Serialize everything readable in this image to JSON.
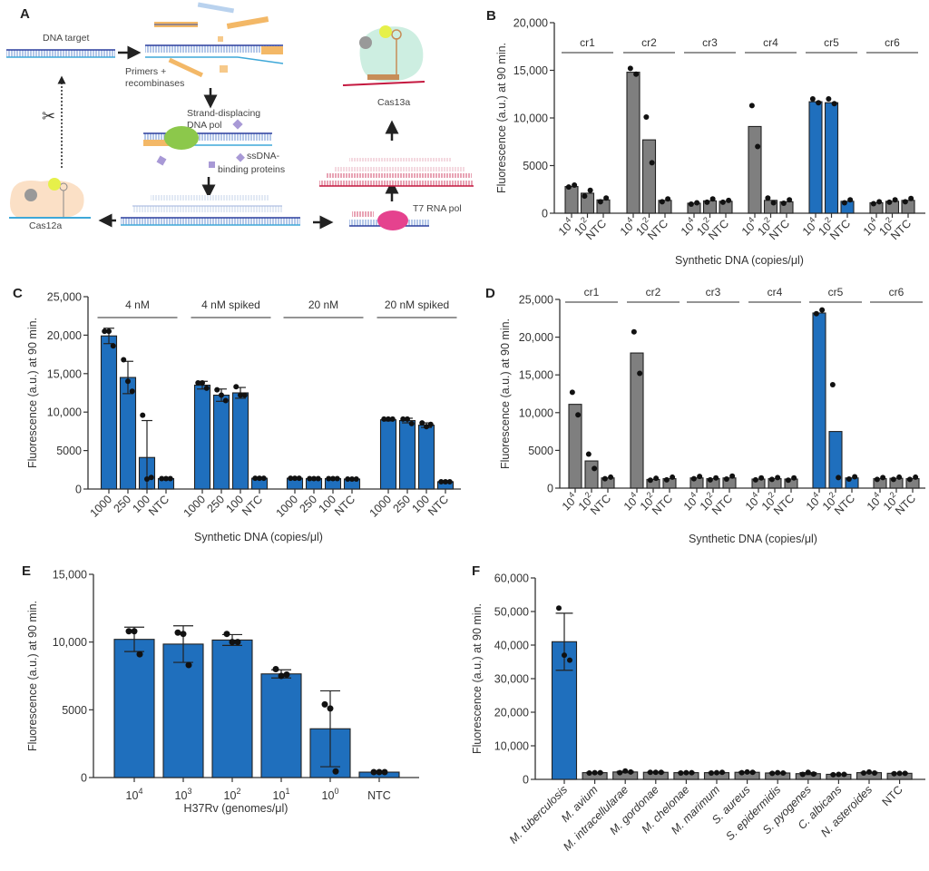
{
  "figure_a": {
    "panel": "A",
    "dna_target": "DNA target",
    "primers_line1": "Primers +",
    "primers_line2": "recombinases",
    "pol_line1": "Strand-displacing",
    "pol_line2": "DNA pol",
    "ssb_line1": "ssDNA-",
    "ssb_line2": "binding proteins",
    "cas12a": "Cas12a",
    "cas13a": "Cas13a",
    "t7": "T7 RNA pol"
  },
  "chart_data": [
    {
      "panel": "B",
      "type": "bar",
      "ylabel": "Fluorescence (a.u.) at 90 min.",
      "xlabel": "Synthetic DNA (copies/μl)",
      "ylim": [
        0,
        20000
      ],
      "yticks": [
        0,
        5000,
        10000,
        15000,
        20000
      ],
      "ytick_labels": [
        "0",
        "5000",
        "10,000",
        "15,000",
        "20,000"
      ],
      "palette": {
        "gray": "#7f7f7f",
        "blue": "#1f6fbd"
      },
      "bar_labels": [
        {
          "t": "10",
          "sup": "4"
        },
        {
          "t": "10",
          "sup": "2"
        },
        {
          "t": "NTC"
        }
      ],
      "groups": [
        {
          "name": "cr1",
          "values": [
            2800,
            2100,
            1400
          ],
          "points": [
            [
              2750,
              2950
            ],
            [
              1800,
              2400
            ],
            [
              1200,
              1600
            ]
          ],
          "colors": [
            "gray",
            "gray",
            "gray"
          ]
        },
        {
          "name": "cr2",
          "values": [
            14800,
            7700,
            1350
          ],
          "points": [
            [
              15200,
              14600
            ],
            [
              10100,
              5300
            ],
            [
              1200,
              1500
            ]
          ],
          "colors": [
            "gray",
            "gray",
            "gray"
          ]
        },
        {
          "name": "cr3",
          "values": [
            1050,
            1300,
            1250
          ],
          "points": [
            [
              950,
              1100
            ],
            [
              1150,
              1500
            ],
            [
              1150,
              1350
            ]
          ],
          "colors": [
            "gray",
            "gray",
            "gray"
          ]
        },
        {
          "name": "cr4",
          "values": [
            9100,
            1350,
            1200
          ],
          "points": [
            [
              11300,
              7000
            ],
            [
              1600,
              1100
            ],
            [
              1050,
              1400
            ]
          ],
          "colors": [
            "gray",
            "gray",
            "gray"
          ]
        },
        {
          "name": "cr5",
          "values": [
            11700,
            11600,
            1250
          ],
          "points": [
            [
              12000,
              11600
            ],
            [
              12000,
              11500
            ],
            [
              1100,
              1400
            ]
          ],
          "colors": [
            "blue",
            "blue",
            "blue"
          ]
        },
        {
          "name": "cr6",
          "values": [
            1100,
            1250,
            1350
          ],
          "points": [
            [
              1000,
              1200
            ],
            [
              1150,
              1400
            ],
            [
              1200,
              1550
            ]
          ],
          "colors": [
            "gray",
            "gray",
            "gray"
          ]
        }
      ]
    },
    {
      "panel": "C",
      "type": "bar",
      "ylabel": "Fluorescence (a.u.) at 90 min.",
      "xlabel": "Synthetic DNA (copies/μl)",
      "ylim": [
        0,
        25000
      ],
      "yticks": [
        0,
        5000,
        10000,
        15000,
        20000,
        25000
      ],
      "ytick_labels": [
        "0",
        "5000",
        "10,000",
        "15,000",
        "20,000",
        "25,000"
      ],
      "palette": {
        "gray": "#7f7f7f",
        "blue": "#1f6fbd"
      },
      "bar_labels": [
        {
          "t": "1000"
        },
        {
          "t": "250"
        },
        {
          "t": "100"
        },
        {
          "t": "NTC"
        }
      ],
      "groups": [
        {
          "name": "4 nM",
          "values": [
            19900,
            14500,
            4100,
            1350
          ],
          "err": [
            1000,
            2100,
            4800,
            0
          ],
          "points": [
            [
              20500,
              20500,
              18600
            ],
            [
              16800,
              14000,
              12700
            ],
            [
              9600,
              1300,
              1500
            ],
            [
              1350,
              1350,
              1350
            ]
          ],
          "colors": [
            "blue",
            "blue",
            "blue",
            "blue"
          ]
        },
        {
          "name": "4 nM spiked",
          "values": [
            13500,
            12200,
            12500,
            1400
          ],
          "err": [
            500,
            800,
            700,
            0
          ],
          "points": [
            [
              13800,
              13800,
              13100
            ],
            [
              12900,
              12200,
              11500
            ],
            [
              13300,
              12200,
              12200
            ],
            [
              1400,
              1400,
              1400
            ]
          ],
          "colors": [
            "blue",
            "blue",
            "blue",
            "blue"
          ]
        },
        {
          "name": "20 nM",
          "values": [
            1400,
            1350,
            1350,
            1300
          ],
          "err": [
            0,
            0,
            0,
            0
          ],
          "points": [
            [
              1400,
              1400,
              1400
            ],
            [
              1350,
              1350,
              1350
            ],
            [
              1350,
              1350,
              1350
            ],
            [
              1300,
              1300,
              1300
            ]
          ],
          "colors": [
            "blue",
            "blue",
            "blue",
            "blue"
          ]
        },
        {
          "name": "20 nM spiked",
          "values": [
            9000,
            8900,
            8300,
            950
          ],
          "err": [
            150,
            300,
            300,
            0
          ],
          "points": [
            [
              9100,
              9100,
              9100
            ],
            [
              9100,
              9100,
              8500
            ],
            [
              8600,
              8100,
              8400
            ],
            [
              950,
              950,
              950
            ]
          ],
          "colors": [
            "blue",
            "blue",
            "blue",
            "blue"
          ]
        }
      ]
    },
    {
      "panel": "D",
      "type": "bar",
      "ylabel": "Fluorescence (a.u.) at 90 min.",
      "xlabel": "Synthetic DNA (copies/μl)",
      "ylim": [
        0,
        25000
      ],
      "yticks": [
        0,
        5000,
        10000,
        15000,
        20000,
        25000
      ],
      "ytick_labels": [
        "0",
        "5000",
        "10,000",
        "15,000",
        "20,000",
        "25,000"
      ],
      "palette": {
        "gray": "#7f7f7f",
        "blue": "#1f6fbd"
      },
      "bar_labels": [
        {
          "t": "10",
          "sup": "4"
        },
        {
          "t": "10",
          "sup": "2"
        },
        {
          "t": "NTC"
        }
      ],
      "groups": [
        {
          "name": "cr1",
          "values": [
            11100,
            3600,
            1350
          ],
          "points": [
            [
              12700,
              9700
            ],
            [
              4500,
              2600
            ],
            [
              1250,
              1450
            ]
          ],
          "colors": [
            "gray",
            "gray",
            "gray"
          ]
        },
        {
          "name": "cr2",
          "values": [
            17900,
            1150,
            1250
          ],
          "points": [
            [
              20700,
              15200
            ],
            [
              1050,
              1300
            ],
            [
              1100,
              1450
            ]
          ],
          "colors": [
            "gray",
            "gray",
            "gray"
          ]
        },
        {
          "name": "cr3",
          "values": [
            1350,
            1250,
            1350
          ],
          "points": [
            [
              1250,
              1550
            ],
            [
              1100,
              1350
            ],
            [
              1200,
              1600
            ]
          ],
          "colors": [
            "gray",
            "gray",
            "gray"
          ]
        },
        {
          "name": "cr4",
          "values": [
            1200,
            1250,
            1200
          ],
          "points": [
            [
              1100,
              1350
            ],
            [
              1150,
              1400
            ],
            [
              1050,
              1350
            ]
          ],
          "colors": [
            "gray",
            "gray",
            "gray"
          ]
        },
        {
          "name": "cr5",
          "values": [
            23200,
            7500,
            1350
          ],
          "points": [
            [
              23100,
              23600
            ],
            [
              13700,
              1400
            ],
            [
              1200,
              1500
            ]
          ],
          "colors": [
            "blue",
            "blue",
            "blue"
          ]
        },
        {
          "name": "cr6",
          "values": [
            1250,
            1300,
            1250
          ],
          "points": [
            [
              1150,
              1400
            ],
            [
              1150,
              1450
            ],
            [
              1150,
              1450
            ]
          ],
          "colors": [
            "gray",
            "gray",
            "gray"
          ]
        }
      ]
    },
    {
      "panel": "E",
      "type": "bar",
      "ylabel": "Fluorescence (a.u.) at 90 min.",
      "xlabel": "H37Rv (genomes/μl)",
      "ylim": [
        0,
        15000
      ],
      "yticks": [
        0,
        5000,
        10000,
        15000
      ],
      "ytick_labels": [
        "0",
        "5000",
        "10,000",
        "15,000"
      ],
      "palette": {
        "gray": "#7f7f7f",
        "blue": "#1f6fbd"
      },
      "bar_labels": [
        {
          "t": "10",
          "sup": "4"
        },
        {
          "t": "10",
          "sup": "3"
        },
        {
          "t": "10",
          "sup": "2"
        },
        {
          "t": "10",
          "sup": "1"
        },
        {
          "t": "10",
          "sup": "0"
        },
        {
          "t": "NTC"
        }
      ],
      "groups": [
        {
          "name": "",
          "values": [
            10200,
            9850,
            10150,
            7650,
            3600,
            400
          ],
          "err": [
            900,
            1350,
            400,
            300,
            2800,
            0
          ],
          "points": [
            [
              10800,
              10800,
              9100
            ],
            [
              10700,
              10600,
              8300
            ],
            [
              10600,
              10000,
              10000
            ],
            [
              8000,
              7500,
              7600
            ],
            [
              5400,
              5100,
              450
            ],
            [
              400,
              400,
              400
            ]
          ],
          "colors": [
            "blue",
            "blue",
            "blue",
            "blue",
            "blue",
            "blue"
          ]
        }
      ]
    },
    {
      "panel": "F",
      "type": "bar",
      "ylabel": "Fluorescence (a.u.) at 90 min.",
      "xlabel": "",
      "ylim": [
        0,
        60000
      ],
      "yticks": [
        0,
        10000,
        20000,
        30000,
        40000,
        50000,
        60000
      ],
      "ytick_labels": [
        "0",
        "10,000",
        "20,000",
        "30,000",
        "40,000",
        "50,000",
        "60,000"
      ],
      "palette": {
        "gray": "#7f7f7f",
        "blue": "#1f6fbd"
      },
      "bar_labels": [
        {
          "t": "M. tuberculosis",
          "italic": true
        },
        {
          "t": "M. avium",
          "italic": true
        },
        {
          "t": "M. intracellularae",
          "italic": true
        },
        {
          "t": "M. gordonae",
          "italic": true
        },
        {
          "t": "M. chelonae",
          "italic": true
        },
        {
          "t": "M. marimum",
          "italic": true
        },
        {
          "t": "S. aureus",
          "italic": true
        },
        {
          "t": "S. epidermidis",
          "italic": true
        },
        {
          "t": "S. pyogenes",
          "italic": true
        },
        {
          "t": "C. albicans",
          "italic": true
        },
        {
          "t": "N. asteroides",
          "italic": true
        },
        {
          "t": "NTC"
        }
      ],
      "groups": [
        {
          "name": "",
          "values": [
            41000,
            2000,
            2200,
            2100,
            2000,
            2000,
            2100,
            1900,
            1700,
            1500,
            2000,
            1800
          ],
          "err": [
            8500,
            100,
            200,
            100,
            100,
            100,
            150,
            150,
            300,
            100,
            150,
            100
          ],
          "points": [
            [
              51000,
              37000,
              35500
            ],
            [
              1900,
              2000,
              2000
            ],
            [
              2000,
              2500,
              2200
            ],
            [
              2100,
              2100,
              2100
            ],
            [
              1900,
              2000,
              2000
            ],
            [
              1900,
              2000,
              2100
            ],
            [
              2000,
              2200,
              2100
            ],
            [
              1800,
              2000,
              1900
            ],
            [
              1500,
              2100,
              1600
            ],
            [
              1400,
              1500,
              1500
            ],
            [
              1900,
              2200,
              1900
            ],
            [
              1700,
              1800,
              1800
            ]
          ],
          "colors": [
            "blue",
            "gray",
            "gray",
            "gray",
            "gray",
            "gray",
            "gray",
            "gray",
            "gray",
            "gray",
            "gray",
            "gray"
          ]
        }
      ]
    }
  ]
}
